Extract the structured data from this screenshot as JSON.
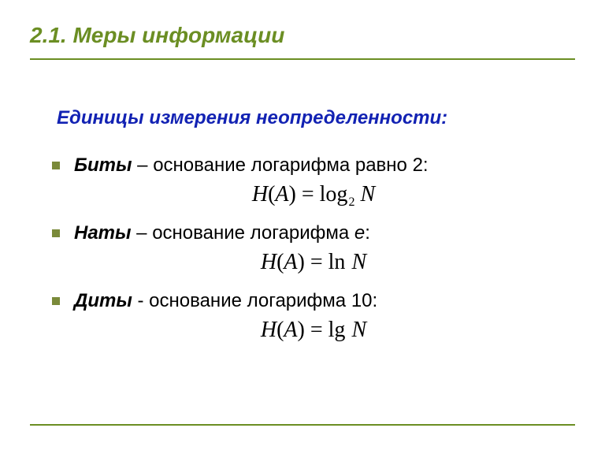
{
  "colors": {
    "title": "#6b8e23",
    "rule": "#6b8e23",
    "subtitle": "#1222b3",
    "body": "#000000",
    "bullet": "#7a8a3a",
    "formula": "#000000"
  },
  "title": "2.1. Меры информации",
  "subtitle": "Единицы измерения неопределенности:",
  "items": [
    {
      "term": "Биты",
      "dash": " – ",
      "desc_before": "основание логарифма равно 2:",
      "desc_ital": "",
      "desc_after": ""
    },
    {
      "term": "Наты",
      "dash": " – ",
      "desc_before": "основание логарифма ",
      "desc_ital": "e",
      "desc_after": ":"
    },
    {
      "term": "Диты",
      "dash": " - ",
      "desc_before": "основание логарифма 10:",
      "desc_ital": "",
      "desc_after": ""
    }
  ],
  "formulas": [
    {
      "lhs": "H",
      "arg": "A",
      "eq": "=",
      "op": "log",
      "sub": "2",
      "rhs": "N"
    },
    {
      "lhs": "H",
      "arg": "A",
      "eq": "=",
      "op": "ln",
      "sub": "",
      "rhs": "N"
    },
    {
      "lhs": "H",
      "arg": "A",
      "eq": "=",
      "op": "lg",
      "sub": "",
      "rhs": "N"
    }
  ]
}
